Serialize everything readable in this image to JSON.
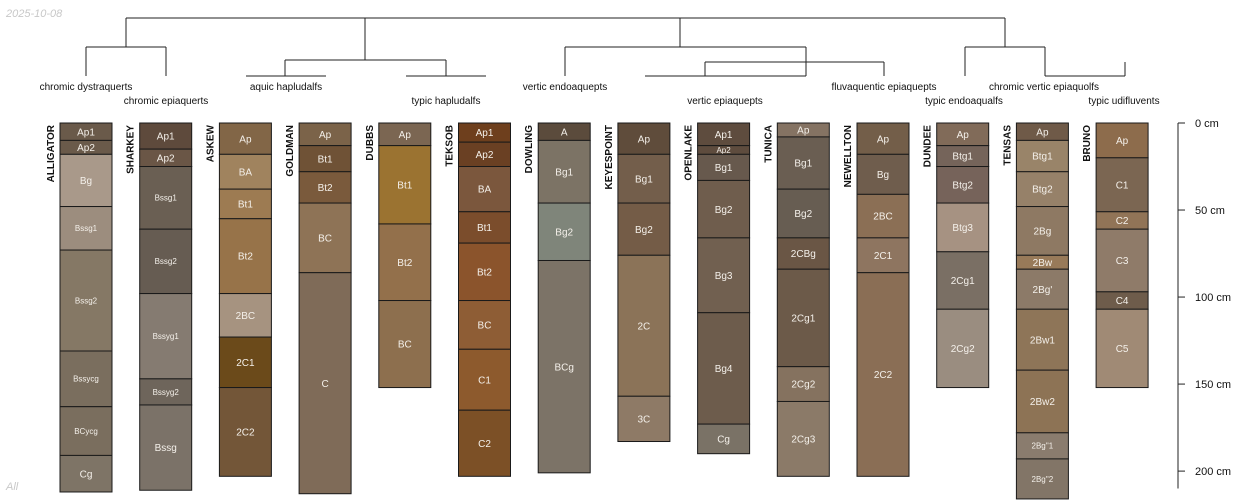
{
  "header": {
    "date": "2025-10-08",
    "subset": "All"
  },
  "chart_data": {
    "type": "soil-profile-sketch",
    "depth_unit": "cm",
    "depth_axis": {
      "range": [
        0,
        210
      ],
      "ticks": [
        0,
        50,
        100,
        150,
        200
      ],
      "tick_labels": [
        "0 cm",
        "50 cm",
        "100 cm",
        "150 cm",
        "200 cm"
      ]
    },
    "classes": [
      "chromic dystraquerts",
      "chromic epiaquerts",
      "aquic hapludalfs",
      "typic hapludalfs",
      "vertic endoaquepts",
      "vertic epiaquepts",
      "fluvaquentic epiaquepts",
      "typic endoaqualfs",
      "chromic vertic epiaquolfs",
      "typic udifluvents"
    ],
    "profiles": [
      {
        "name": "ALLIGATOR",
        "class": "chromic dystraquerts",
        "horizons": [
          {
            "name": "Ap1",
            "top": 0,
            "bottom": 10,
            "color": "#6a5a4a"
          },
          {
            "name": "Ap2",
            "top": 10,
            "bottom": 18,
            "color": "#6a5a4a"
          },
          {
            "name": "Bg",
            "top": 18,
            "bottom": 48,
            "color": "#a9998a"
          },
          {
            "name": "Bssg1",
            "top": 48,
            "bottom": 73,
            "color": "#9c8d7e"
          },
          {
            "name": "Bssg2",
            "top": 73,
            "bottom": 131,
            "color": "#857865"
          },
          {
            "name": "Bssycg",
            "top": 131,
            "bottom": 163,
            "color": "#7a6e5e"
          },
          {
            "name": "BCycg",
            "top": 163,
            "bottom": 191,
            "color": "#7a6e5e"
          },
          {
            "name": "Cg",
            "top": 191,
            "bottom": 212,
            "color": "#7e7466"
          }
        ]
      },
      {
        "name": "SHARKEY",
        "class": "chromic epiaquerts",
        "horizons": [
          {
            "name": "Ap1",
            "top": 0,
            "bottom": 15,
            "color": "#5e4a3c"
          },
          {
            "name": "Ap2",
            "top": 15,
            "bottom": 25,
            "color": "#6a5646"
          },
          {
            "name": "Bssg1",
            "top": 25,
            "bottom": 61,
            "color": "#6a5f53"
          },
          {
            "name": "Bssg2",
            "top": 61,
            "bottom": 98,
            "color": "#665c52"
          },
          {
            "name": "Bssyg1",
            "top": 98,
            "bottom": 147,
            "color": "#857b71"
          },
          {
            "name": "Bssyg2",
            "top": 147,
            "bottom": 162,
            "color": "#6e655b"
          },
          {
            "name": "Bssg",
            "top": 162,
            "bottom": 211,
            "color": "#7b7268"
          }
        ]
      },
      {
        "name": "ASKEW",
        "class": "aquic hapludalfs",
        "horizons": [
          {
            "name": "Ap",
            "top": 0,
            "bottom": 18,
            "color": "#826647"
          },
          {
            "name": "BA",
            "top": 18,
            "bottom": 38,
            "color": "#a0835e"
          },
          {
            "name": "Bt1",
            "top": 38,
            "bottom": 55,
            "color": "#9d7b52"
          },
          {
            "name": "Bt2",
            "top": 55,
            "bottom": 98,
            "color": "#977349"
          },
          {
            "name": "2BC",
            "top": 98,
            "bottom": 123,
            "color": "#a69380"
          },
          {
            "name": "2C1",
            "top": 123,
            "bottom": 152,
            "color": "#6b4a1a"
          },
          {
            "name": "2C2",
            "top": 152,
            "bottom": 203,
            "color": "#735638"
          }
        ]
      },
      {
        "name": "GOLDMAN",
        "class": "aquic hapludalfs",
        "horizons": [
          {
            "name": "Ap",
            "top": 0,
            "bottom": 13,
            "color": "#7b6349"
          },
          {
            "name": "Bt1",
            "top": 13,
            "bottom": 28,
            "color": "#6f5236"
          },
          {
            "name": "Bt2",
            "top": 28,
            "bottom": 46,
            "color": "#7a5a3c"
          },
          {
            "name": "BC",
            "top": 46,
            "bottom": 86,
            "color": "#8e7356"
          },
          {
            "name": "C",
            "top": 86,
            "bottom": 213,
            "color": "#7f6b58"
          }
        ]
      },
      {
        "name": "DUBBS",
        "class": "typic hapludalfs",
        "horizons": [
          {
            "name": "Ap",
            "top": 0,
            "bottom": 13,
            "color": "#7b6652"
          },
          {
            "name": "Bt1",
            "top": 13,
            "bottom": 58,
            "color": "#9b7331"
          },
          {
            "name": "Bt2",
            "top": 58,
            "bottom": 102,
            "color": "#93704b"
          },
          {
            "name": "BC",
            "top": 102,
            "bottom": 152,
            "color": "#8d6f4e"
          }
        ]
      },
      {
        "name": "TEKSOB",
        "class": "typic hapludalfs",
        "horizons": [
          {
            "name": "Ap1",
            "top": 0,
            "bottom": 11,
            "color": "#6e3f1d"
          },
          {
            "name": "Ap2",
            "top": 11,
            "bottom": 25,
            "color": "#6a4023"
          },
          {
            "name": "BA",
            "top": 25,
            "bottom": 51,
            "color": "#7b573d"
          },
          {
            "name": "Bt1",
            "top": 51,
            "bottom": 69,
            "color": "#7b4d2c"
          },
          {
            "name": "Bt2",
            "top": 69,
            "bottom": 102,
            "color": "#8b542c"
          },
          {
            "name": "BC",
            "top": 102,
            "bottom": 130,
            "color": "#8e5d35"
          },
          {
            "name": "C1",
            "top": 130,
            "bottom": 165,
            "color": "#8d5a2d"
          },
          {
            "name": "C2",
            "top": 165,
            "bottom": 203,
            "color": "#7c5026"
          }
        ]
      },
      {
        "name": "DOWLING",
        "class": "vertic endoaquepts",
        "horizons": [
          {
            "name": "A",
            "top": 0,
            "bottom": 10,
            "color": "#5b4b3c"
          },
          {
            "name": "Bg1",
            "top": 10,
            "bottom": 46,
            "color": "#7c7365"
          },
          {
            "name": "Bg2",
            "top": 46,
            "bottom": 79,
            "color": "#7f857a"
          },
          {
            "name": "BCg",
            "top": 79,
            "bottom": 201,
            "color": "#7c7367"
          }
        ]
      },
      {
        "name": "KEYESPOINT",
        "class": "vertic epiaquepts",
        "horizons": [
          {
            "name": "Ap",
            "top": 0,
            "bottom": 18,
            "color": "#5f4c3b"
          },
          {
            "name": "Bg1",
            "top": 18,
            "bottom": 46,
            "color": "#735e4b"
          },
          {
            "name": "Bg2",
            "top": 46,
            "bottom": 76,
            "color": "#745c47"
          },
          {
            "name": "2C",
            "top": 76,
            "bottom": 157,
            "color": "#8b7358"
          },
          {
            "name": "3C",
            "top": 157,
            "bottom": 183,
            "color": "#8e7a66"
          }
        ]
      },
      {
        "name": "OPENLAKE",
        "class": "vertic epiaquepts",
        "horizons": [
          {
            "name": "Ap1",
            "top": 0,
            "bottom": 13,
            "color": "#5e4c3e"
          },
          {
            "name": "Ap2",
            "top": 13,
            "bottom": 18,
            "color": "#5e4c3e"
          },
          {
            "name": "Bg1",
            "top": 18,
            "bottom": 33,
            "color": "#67594d"
          },
          {
            "name": "Bg2",
            "top": 33,
            "bottom": 66,
            "color": "#6f5d4d"
          },
          {
            "name": "Bg3",
            "top": 66,
            "bottom": 109,
            "color": "#716050"
          },
          {
            "name": "Bg4",
            "top": 109,
            "bottom": 173,
            "color": "#6d5c4c"
          },
          {
            "name": "Cg",
            "top": 173,
            "bottom": 190,
            "color": "#7a7266"
          }
        ]
      },
      {
        "name": "TUNICA",
        "class": "vertic epiaquepts",
        "horizons": [
          {
            "name": "Ap",
            "top": 0,
            "bottom": 8,
            "color": "#857363"
          },
          {
            "name": "Bg1",
            "top": 8,
            "bottom": 38,
            "color": "#6a5e52"
          },
          {
            "name": "Bg2",
            "top": 38,
            "bottom": 66,
            "color": "#675d52"
          },
          {
            "name": "2CBg",
            "top": 66,
            "bottom": 84,
            "color": "#6a5645"
          },
          {
            "name": "2Cg1",
            "top": 84,
            "bottom": 140,
            "color": "#6c5a49"
          },
          {
            "name": "2Cg2",
            "top": 140,
            "bottom": 160,
            "color": "#85725f"
          },
          {
            "name": "2Cg3",
            "top": 160,
            "bottom": 203,
            "color": "#8b7a68"
          }
        ]
      },
      {
        "name": "NEWELLTON",
        "class": "fluvaquentic epiaquepts",
        "horizons": [
          {
            "name": "Ap",
            "top": 0,
            "bottom": 18,
            "color": "#735e49"
          },
          {
            "name": "Bg",
            "top": 18,
            "bottom": 41,
            "color": "#6f5d4d"
          },
          {
            "name": "2BC",
            "top": 41,
            "bottom": 66,
            "color": "#8b6f55"
          },
          {
            "name": "2C1",
            "top": 66,
            "bottom": 86,
            "color": "#8e7560"
          },
          {
            "name": "2C2",
            "top": 86,
            "bottom": 203,
            "color": "#8a6e55"
          }
        ]
      },
      {
        "name": "DUNDEE",
        "class": "typic endoaqualfs",
        "horizons": [
          {
            "name": "Ap",
            "top": 0,
            "bottom": 13,
            "color": "#816b59"
          },
          {
            "name": "Btg1",
            "top": 13,
            "bottom": 25,
            "color": "#75645a"
          },
          {
            "name": "Btg2",
            "top": 25,
            "bottom": 46,
            "color": "#76635a"
          },
          {
            "name": "Btg3",
            "top": 46,
            "bottom": 74,
            "color": "#a69282"
          },
          {
            "name": "2Cg1",
            "top": 74,
            "bottom": 107,
            "color": "#7a6f64"
          },
          {
            "name": "2Cg2",
            "top": 107,
            "bottom": 152,
            "color": "#9a8d80"
          }
        ]
      },
      {
        "name": "TENSAS",
        "class": "chromic vertic epiaquolfs",
        "horizons": [
          {
            "name": "Ap",
            "top": 0,
            "bottom": 10,
            "color": "#6f5a48"
          },
          {
            "name": "Btg1",
            "top": 10,
            "bottom": 28,
            "color": "#998469"
          },
          {
            "name": "Btg2",
            "top": 28,
            "bottom": 48,
            "color": "#968169"
          },
          {
            "name": "2Bg",
            "top": 48,
            "bottom": 76,
            "color": "#8e7963"
          },
          {
            "name": "2Bw",
            "top": 76,
            "bottom": 84,
            "color": "#987a59"
          },
          {
            "name": "2Bg'",
            "top": 84,
            "bottom": 107,
            "color": "#8c7a68"
          },
          {
            "name": "2Bw1",
            "top": 107,
            "bottom": 142,
            "color": "#8e7558"
          },
          {
            "name": "2Bw2",
            "top": 142,
            "bottom": 178,
            "color": "#8d7355"
          },
          {
            "name": "2Bg''1",
            "top": 178,
            "bottom": 193,
            "color": "#8a7c6e"
          },
          {
            "name": "2Bg''2",
            "top": 193,
            "bottom": 216,
            "color": "#827567"
          }
        ]
      },
      {
        "name": "BRUNO",
        "class": "typic udifluvents",
        "horizons": [
          {
            "name": "Ap",
            "top": 0,
            "bottom": 20,
            "color": "#8d6c4c"
          },
          {
            "name": "C1",
            "top": 20,
            "bottom": 51,
            "color": "#7b6652"
          },
          {
            "name": "C2",
            "top": 51,
            "bottom": 61,
            "color": "#917457"
          },
          {
            "name": "C3",
            "top": 61,
            "bottom": 97,
            "color": "#8f7b69"
          },
          {
            "name": "C4",
            "top": 97,
            "bottom": 107,
            "color": "#6e5c4b"
          },
          {
            "name": "C5",
            "top": 107,
            "bottom": 152,
            "color": "#a08a75"
          }
        ]
      }
    ]
  }
}
